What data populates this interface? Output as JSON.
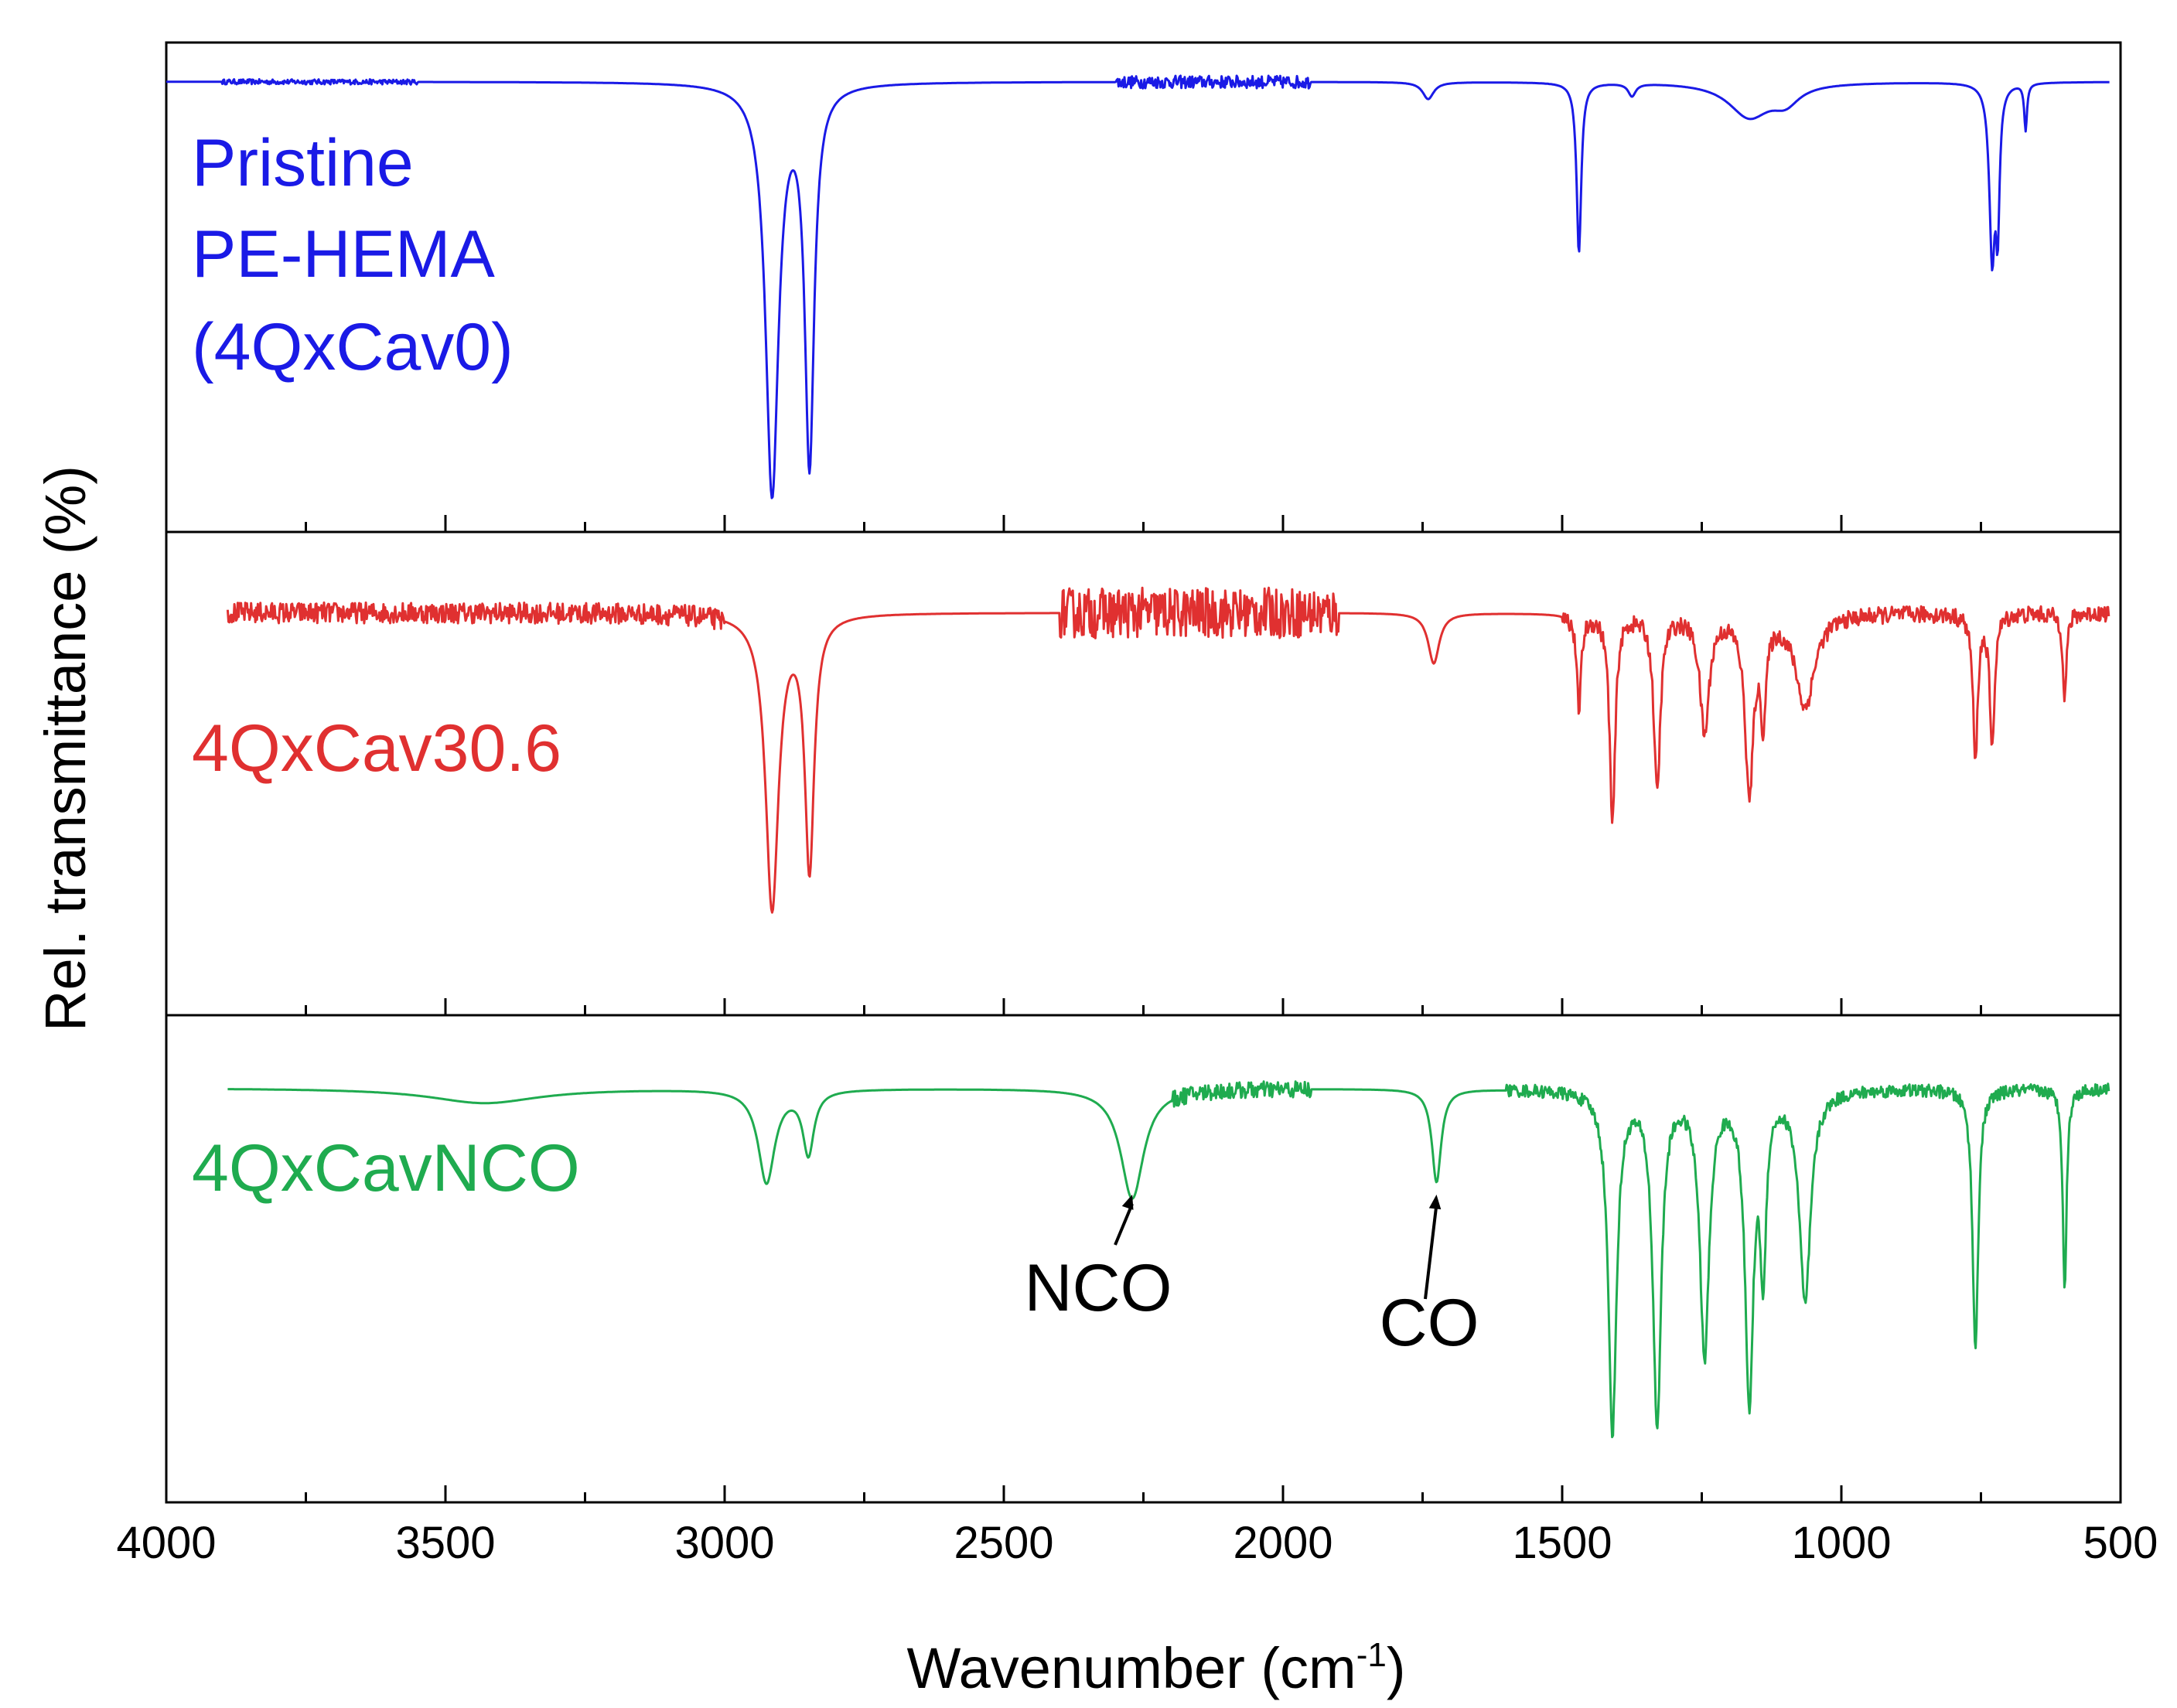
{
  "chart_data": {
    "type": "line",
    "layout": "three vertically stacked panels sharing x-axis",
    "xlabel": "Wavenumber (cm",
    "xlabel_sup": "-1",
    "xlabel_close": ")",
    "ylabel": "Rel. transmittance (%)",
    "xlim": [
      4000,
      500
    ],
    "x_ticks": [
      "4000",
      "3500",
      "3000",
      "2500",
      "2000",
      "1500",
      "1000",
      "500"
    ],
    "x_tick_values": [
      4000,
      3500,
      3000,
      2500,
      2000,
      1500,
      1000,
      500
    ],
    "x_minor_tick_values": [
      3750,
      3250,
      2750,
      2250,
      1750,
      1250,
      750
    ],
    "series": [
      {
        "name": "Pristine PE-HEMA (4QxCav0)",
        "label_lines": [
          "Pristine",
          "PE-HEMA",
          "(4QxCav0)"
        ],
        "color": "#1a1ae6",
        "x_range": [
          4000,
          520
        ],
        "baseline": 1.0,
        "noise": [
          {
            "from": 2300,
            "to": 1950,
            "amp": 0.015
          },
          {
            "from": 3900,
            "to": 3550,
            "amp": 0.006
          }
        ],
        "peaks": [
          {
            "x": 2915,
            "depth": 0.96,
            "width": 14
          },
          {
            "x": 2848,
            "depth": 0.88,
            "width": 10
          },
          {
            "x": 1740,
            "depth": 0.04,
            "width": 12
          },
          {
            "x": 1470,
            "depth": 0.4,
            "width": 5
          },
          {
            "x": 1375,
            "depth": 0.03,
            "width": 8
          },
          {
            "x": 1165,
            "depth": 0.08,
            "width": 45
          },
          {
            "x": 1100,
            "depth": 0.04,
            "width": 30
          },
          {
            "x": 730,
            "depth": 0.4,
            "width": 6
          },
          {
            "x": 720,
            "depth": 0.3,
            "width": 4
          },
          {
            "x": 670,
            "depth": 0.11,
            "width": 3
          }
        ]
      },
      {
        "name": "4QxCav30.6",
        "label_lines": [
          "4QxCav30.6"
        ],
        "color": "#e03030",
        "x_range": [
          3890,
          520
        ],
        "baseline": 0.9,
        "noise": [
          {
            "from": 3890,
            "to": 3000,
            "amp": 0.025
          },
          {
            "from": 2400,
            "to": 1900,
            "amp": 0.06
          },
          {
            "from": 1500,
            "to": 520,
            "amp": 0.02
          }
        ],
        "peaks": [
          {
            "x": 2915,
            "depth": 0.7,
            "width": 14
          },
          {
            "x": 2848,
            "depth": 0.6,
            "width": 10
          },
          {
            "x": 1730,
            "depth": 0.12,
            "width": 12
          },
          {
            "x": 1470,
            "depth": 0.22,
            "width": 5
          },
          {
            "x": 1410,
            "depth": 0.5,
            "width": 6
          },
          {
            "x": 1330,
            "depth": 0.42,
            "width": 7
          },
          {
            "x": 1245,
            "depth": 0.28,
            "width": 10
          },
          {
            "x": 1165,
            "depth": 0.42,
            "width": 9
          },
          {
            "x": 1140,
            "depth": 0.22,
            "width": 6
          },
          {
            "x": 1065,
            "depth": 0.22,
            "width": 20
          },
          {
            "x": 760,
            "depth": 0.35,
            "width": 5
          },
          {
            "x": 730,
            "depth": 0.32,
            "width": 5
          },
          {
            "x": 600,
            "depth": 0.2,
            "width": 4
          }
        ]
      },
      {
        "name": "4QxCavNCO",
        "label_lines": [
          "4QxCavNCO"
        ],
        "color": "#1fab4f",
        "x_range": [
          3890,
          520
        ],
        "baseline": 0.92,
        "noise": [
          {
            "from": 2200,
            "to": 1950,
            "amp": 0.02
          },
          {
            "from": 1600,
            "to": 520,
            "amp": 0.015
          }
        ],
        "peaks": [
          {
            "x": 3430,
            "depth": 0.035,
            "width": 120
          },
          {
            "x": 2925,
            "depth": 0.22,
            "width": 18
          },
          {
            "x": 2850,
            "depth": 0.15,
            "width": 12
          },
          {
            "x": 2270,
            "depth": 0.26,
            "width": 25
          },
          {
            "x": 1725,
            "depth": 0.22,
            "width": 10
          },
          {
            "x": 1410,
            "depth": 0.8,
            "width": 9
          },
          {
            "x": 1330,
            "depth": 0.78,
            "width": 9
          },
          {
            "x": 1245,
            "depth": 0.62,
            "width": 10
          },
          {
            "x": 1165,
            "depth": 0.72,
            "width": 9
          },
          {
            "x": 1140,
            "depth": 0.4,
            "width": 6
          },
          {
            "x": 1065,
            "depth": 0.5,
            "width": 12
          },
          {
            "x": 760,
            "depth": 0.62,
            "width": 6
          },
          {
            "x": 600,
            "depth": 0.48,
            "width": 4
          }
        ]
      }
    ],
    "annotations": [
      {
        "text": "NCO",
        "x": 2270,
        "series": "4QxCavNCO"
      },
      {
        "text": "CO",
        "x": 1725,
        "series": "4QxCavNCO"
      }
    ]
  }
}
